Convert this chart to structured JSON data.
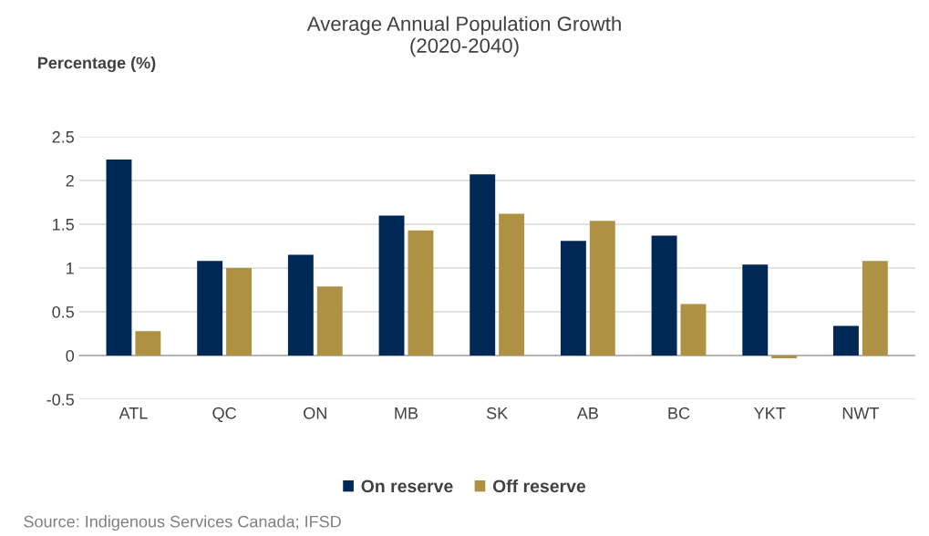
{
  "chart_data": {
    "type": "bar",
    "title": "Average Annual Population Growth\n(2020-2040)",
    "ylabel": "Percentage (%)",
    "categories": [
      "ATL",
      "QC",
      "ON",
      "MB",
      "SK",
      "AB",
      "BC",
      "YKT",
      "NWT"
    ],
    "series": [
      {
        "name": "On reserve",
        "color": "#002855",
        "values": [
          2.24,
          1.08,
          1.15,
          1.6,
          2.07,
          1.31,
          1.37,
          1.04,
          0.34
        ]
      },
      {
        "name": "Off reserve",
        "color": "#af9143",
        "values": [
          0.28,
          1.0,
          0.79,
          1.43,
          1.62,
          1.54,
          0.59,
          -0.03,
          1.08
        ]
      }
    ],
    "ylim": [
      -0.5,
      2.5
    ],
    "yticks": [
      -0.5,
      0,
      0.5,
      1,
      1.5,
      2,
      2.5
    ],
    "grid": "y",
    "legend": "bottom",
    "annotations": [
      "Source: Indigenous Services Canada; IFSD"
    ]
  }
}
